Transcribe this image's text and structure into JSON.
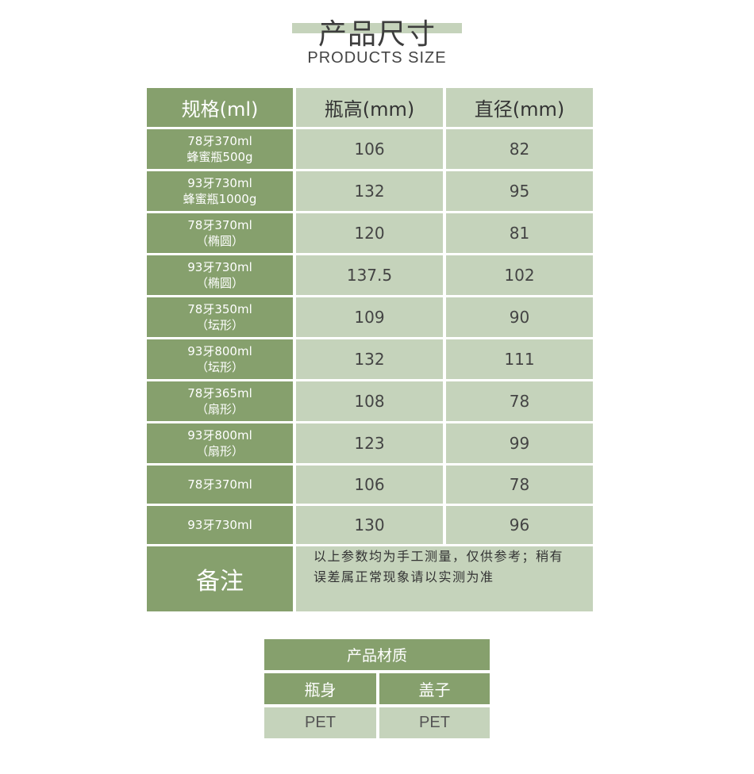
{
  "header": {
    "title": "产品尺寸",
    "subtitle": "PRODUCTS SIZE"
  },
  "colors": {
    "dark_green": "#86a06d",
    "light_green": "#c5d3bb"
  },
  "size_table": {
    "columns": [
      "规格(ml)",
      "瓶高(mm)",
      "直径(mm)"
    ],
    "rows": [
      {
        "spec1": "78牙370ml",
        "spec2": "蜂蜜瓶500g",
        "height": "106",
        "diameter": "82"
      },
      {
        "spec1": "93牙730ml",
        "spec2": "蜂蜜瓶1000g",
        "height": "132",
        "diameter": "95"
      },
      {
        "spec1": "78牙370ml",
        "spec2": "（椭圆）",
        "height": "120",
        "diameter": "81"
      },
      {
        "spec1": "93牙730ml",
        "spec2": "（椭圆）",
        "height": "137.5",
        "diameter": "102"
      },
      {
        "spec1": "78牙350ml",
        "spec2": "（坛形）",
        "height": "109",
        "diameter": "90"
      },
      {
        "spec1": "93牙800ml",
        "spec2": "（坛形）",
        "height": "132",
        "diameter": "111"
      },
      {
        "spec1": "78牙365ml",
        "spec2": "（扇形）",
        "height": "108",
        "diameter": "78"
      },
      {
        "spec1": "93牙800ml",
        "spec2": "（扇形）",
        "height": "123",
        "diameter": "99"
      },
      {
        "spec1": "78牙370ml",
        "height": "106",
        "diameter": "78"
      },
      {
        "spec1": "93牙730ml",
        "height": "130",
        "diameter": "96"
      }
    ],
    "note_label": "备注",
    "note_line1": "以上参数均为手工测量，仅供参考；稍有",
    "note_line2": "误差属正常现象请以实测为准"
  },
  "material_table": {
    "title": "产品材质",
    "columns": [
      "瓶身",
      "盖子"
    ],
    "values": [
      "PET",
      "PET"
    ]
  }
}
